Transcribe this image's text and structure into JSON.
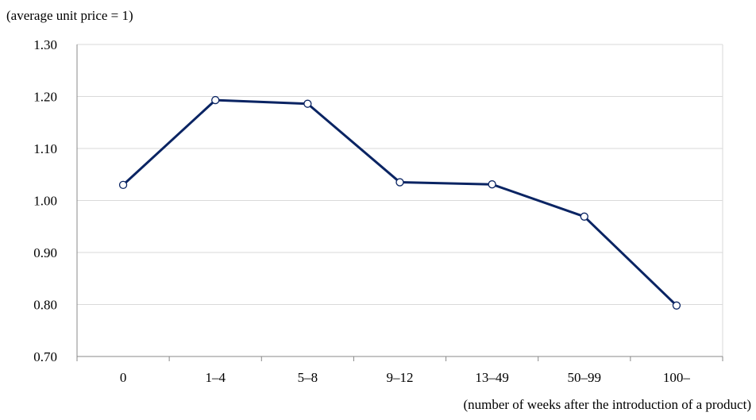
{
  "colors": {
    "line": "#0a2463",
    "grid": "#d9d9d9",
    "axis": "#898989",
    "marker_fill": "#ffffff"
  },
  "chart_data": {
    "type": "line",
    "categories": [
      "0",
      "1–4",
      "5–8",
      "9–12",
      "13–49",
      "50–99",
      "100–"
    ],
    "series": [
      {
        "values": [
          1.03,
          1.193,
          1.186,
          1.035,
          1.031,
          0.969,
          0.798
        ]
      }
    ],
    "ylabel": "(average unit price = 1)",
    "xlabel": "(number of weeks after the introduction of a product)",
    "ylim": [
      0.7,
      1.3
    ],
    "yticks": [
      "0.70",
      "0.80",
      "0.90",
      "1.00",
      "1.10",
      "1.20",
      "1.30"
    ],
    "grid": true,
    "legend": "none",
    "markers": "open-circle"
  }
}
